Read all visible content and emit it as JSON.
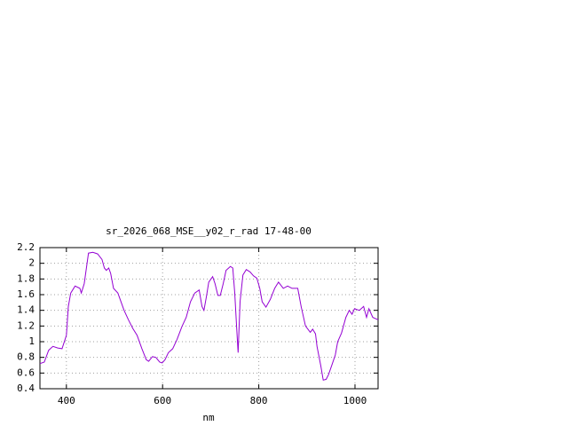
{
  "chart_data": {
    "type": "line",
    "title": "sr_2026_068_MSE__y02_r_rad 17-48-00",
    "x_label": "nm",
    "series": [
      {
        "name": "sr_2026_068_MSE__y02_r_rad",
        "color": "#9400d3",
        "x": [
          345,
          354,
          363,
          372,
          382,
          391,
          400,
          404,
          409,
          418,
          428,
          431,
          437,
          446,
          455,
          465,
          474,
          479,
          483,
          488,
          492,
          498,
          507,
          520,
          529,
          538,
          547,
          557,
          566,
          571,
          579,
          586,
          594,
          599,
          605,
          612,
          621,
          630,
          640,
          649,
          658,
          667,
          676,
          682,
          686,
          691,
          696,
          704,
          709,
          715,
          720,
          726,
          732,
          741,
          746,
          750,
          754,
          757,
          761,
          767,
          774,
          782,
          789,
          796,
          802,
          807,
          815,
          824,
          833,
          841,
          851,
          860,
          869,
          881,
          888,
          897,
          907,
          912,
          918,
          921,
          929,
          934,
          940,
          945,
          953,
          959,
          964,
          972,
          981,
          988,
          994,
          999,
          1009,
          1018,
          1024,
          1029,
          1037,
          1048
        ],
        "values": [
          0.72,
          0.74,
          0.89,
          0.94,
          0.92,
          0.91,
          1.08,
          1.45,
          1.62,
          1.71,
          1.68,
          1.62,
          1.74,
          2.13,
          2.14,
          2.12,
          2.05,
          1.94,
          1.91,
          1.94,
          1.87,
          1.68,
          1.62,
          1.4,
          1.28,
          1.17,
          1.08,
          0.91,
          0.77,
          0.75,
          0.81,
          0.8,
          0.74,
          0.73,
          0.77,
          0.86,
          0.91,
          1.03,
          1.19,
          1.31,
          1.51,
          1.62,
          1.66,
          1.45,
          1.4,
          1.57,
          1.76,
          1.83,
          1.74,
          1.59,
          1.59,
          1.74,
          1.91,
          1.96,
          1.94,
          1.62,
          1.17,
          0.86,
          1.51,
          1.85,
          1.92,
          1.89,
          1.84,
          1.81,
          1.68,
          1.51,
          1.44,
          1.54,
          1.68,
          1.76,
          1.68,
          1.71,
          1.68,
          1.68,
          1.45,
          1.2,
          1.12,
          1.16,
          1.1,
          0.94,
          0.69,
          0.51,
          0.52,
          0.58,
          0.72,
          0.83,
          1.0,
          1.11,
          1.31,
          1.4,
          1.35,
          1.42,
          1.4,
          1.45,
          1.31,
          1.42,
          1.31,
          1.28
        ]
      }
    ],
    "xlim": [
      345,
      1048
    ],
    "xticks": [
      400,
      600,
      800,
      1000
    ],
    "ylim": [
      0.4,
      2.2
    ],
    "yticks": [
      0.4,
      0.6,
      0.8,
      1,
      1.2,
      1.4,
      1.6,
      1.8,
      2,
      2.2
    ],
    "grid": true
  }
}
